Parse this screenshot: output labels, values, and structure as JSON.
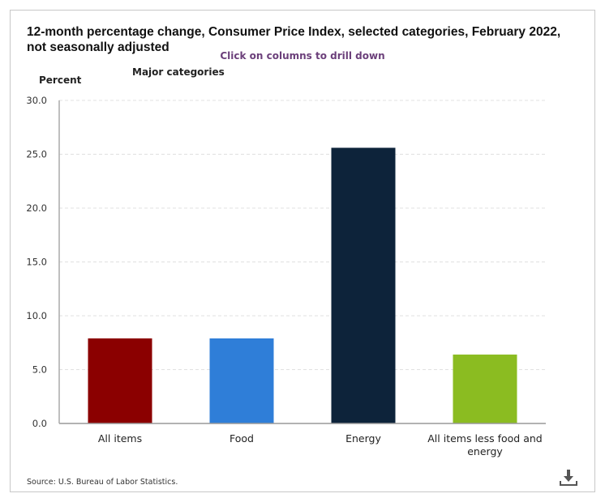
{
  "chart_data": {
    "type": "bar",
    "title": "12-month percentage change, Consumer Price Index, selected categories, February 2022, not seasonally adjusted",
    "subtitle": "Click on columns to drill down",
    "series_label": "Major categories",
    "ylabel": "Percent",
    "xlabel": "",
    "ylim": [
      0,
      30
    ],
    "yticks": [
      "0.0",
      "5.0",
      "10.0",
      "15.0",
      "20.0",
      "25.0",
      "30.0"
    ],
    "grid": true,
    "categories": [
      "All items",
      "Food",
      "Energy",
      "All items less food and energy"
    ],
    "category_lines": [
      [
        "All items"
      ],
      [
        "Food"
      ],
      [
        "Energy"
      ],
      [
        "All items less food and",
        "energy"
      ]
    ],
    "values": [
      7.9,
      7.9,
      25.6,
      6.4
    ],
    "colors": [
      "#8b0000",
      "#2f7ed8",
      "#0d233a",
      "#8bbc21"
    ],
    "source": "Source: U.S. Bureau of Labor Statistics."
  },
  "toolbar": {
    "download_icon": "download-icon"
  }
}
